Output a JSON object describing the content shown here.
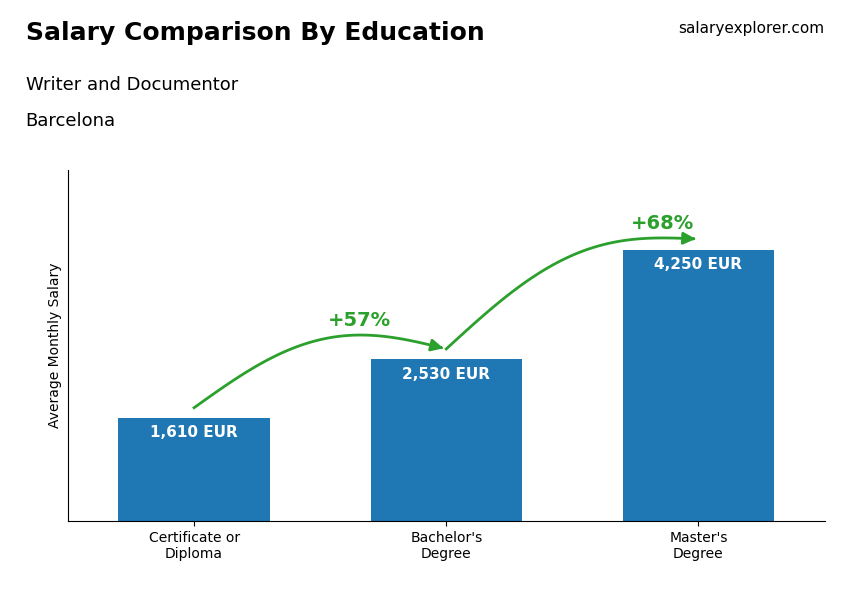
{
  "chart_data": {
    "type": "bar",
    "title": "Salary Comparison By Education",
    "subtitle": "Writer and Documentor",
    "city": "Barcelona",
    "watermark": [
      "salary",
      "explorer.com"
    ],
    "ylabel": "Average Monthly Salary",
    "categories": [
      "Certificate or\nDiploma",
      "Bachelor's\nDegree",
      "Master's\nDegree"
    ],
    "values": [
      1610,
      2530,
      4250
    ],
    "value_labels": [
      "1,610 EUR",
      "2,530 EUR",
      "4,250 EUR"
    ],
    "data_labels": true,
    "annotations": [
      "+57%",
      "+68%"
    ],
    "ylim": [
      0,
      5500
    ],
    "tick_labels": "x"
  }
}
